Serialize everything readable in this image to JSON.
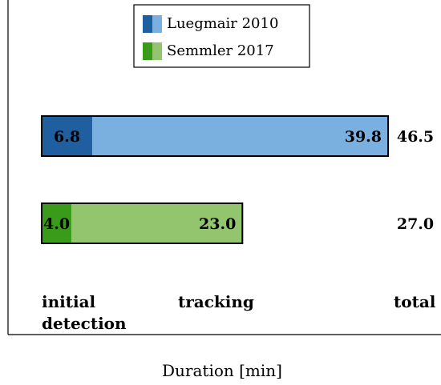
{
  "chart_data": {
    "type": "bar",
    "orientation": "horizontal",
    "stacked": true,
    "xlabel": "Duration [min]",
    "ylabel": "",
    "title": "",
    "grid": false,
    "legend_position": "top-center",
    "segment_labels": [
      "initial detection",
      "tracking",
      "total"
    ],
    "series": [
      {
        "name": "Luegmair 2010",
        "segments": [
          {
            "label": "initial detection",
            "value": 6.8,
            "display": "6.8",
            "color": "#1f5fa0"
          },
          {
            "label": "tracking",
            "value": 39.8,
            "display": "39.8",
            "color": "#7ab0e0"
          }
        ],
        "total": 46.5,
        "total_display": "46.5"
      },
      {
        "name": "Semmler 2017",
        "segments": [
          {
            "label": "initial detection",
            "value": 4.0,
            "display": "4.0",
            "color": "#3a9a1a"
          },
          {
            "label": "tracking",
            "value": 23.0,
            "display": "23.0",
            "color": "#93c46e"
          }
        ],
        "total": 27.0,
        "total_display": "27.0"
      }
    ],
    "legend_colors": {
      "Luegmair 2010": [
        "#1f5fa0",
        "#7ab0e0"
      ],
      "Semmler 2017": [
        "#3a9a1a",
        "#93c46e"
      ]
    },
    "category_texts": {
      "initial_detection": [
        "initial",
        "detection"
      ],
      "tracking": "tracking",
      "total": "total"
    }
  }
}
